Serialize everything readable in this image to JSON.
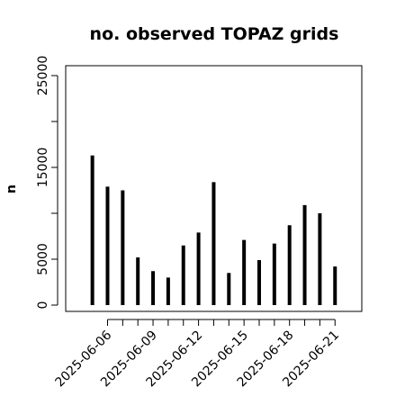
{
  "chart_data": {
    "type": "bar",
    "title": "no. observed TOPAZ grids",
    "xlabel": "",
    "ylabel": "n",
    "ylim": [
      0,
      26000
    ],
    "y_ticks": [
      0,
      5000,
      10000,
      15000,
      20000,
      25000
    ],
    "y_tick_labels": [
      "0",
      "5000",
      "",
      "15000",
      "",
      "25000"
    ],
    "x_range": [
      "2025-06-04",
      "2025-06-23"
    ],
    "x_ticks": [
      "2025-06-06",
      "2025-06-07",
      "2025-06-08",
      "2025-06-09",
      "2025-06-10",
      "2025-06-11",
      "2025-06-12",
      "2025-06-13",
      "2025-06-14",
      "2025-06-15",
      "2025-06-16",
      "2025-06-17",
      "2025-06-18",
      "2025-06-19",
      "2025-06-20",
      "2025-06-21"
    ],
    "x_tick_labels": [
      "2025-06-06",
      "",
      "",
      "2025-06-09",
      "",
      "",
      "2025-06-12",
      "",
      "",
      "2025-06-15",
      "",
      "",
      "2025-06-18",
      "",
      "",
      "2025-06-21"
    ],
    "x_tick_label_colors": [
      "#000000",
      "",
      "",
      "#000000",
      "",
      "",
      "#228B22",
      "",
      "",
      "#000000",
      "",
      "",
      "#000000",
      "",
      "",
      "#000000"
    ],
    "dates": [
      "2025-06-05",
      "2025-06-06",
      "2025-06-07",
      "2025-06-08",
      "2025-06-09",
      "2025-06-10",
      "2025-06-11",
      "2025-06-12",
      "2025-06-13",
      "2025-06-14",
      "2025-06-15",
      "2025-06-16",
      "2025-06-17",
      "2025-06-18",
      "2025-06-19",
      "2025-06-20",
      "2025-06-21"
    ],
    "values": [
      16300,
      12900,
      12500,
      5200,
      3700,
      3000,
      6500,
      7900,
      13400,
      3500,
      7100,
      4900,
      6700,
      8700,
      10900,
      10000,
      4200
    ],
    "bar_color": "#000000",
    "grid": false
  }
}
